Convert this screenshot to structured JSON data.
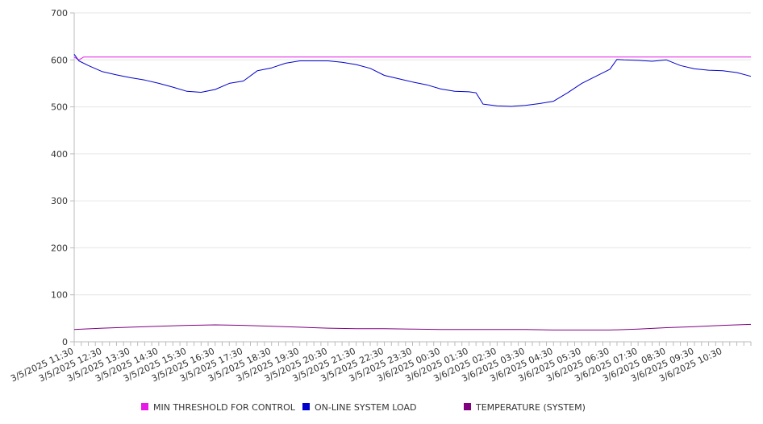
{
  "chart_data": {
    "type": "line",
    "title": "",
    "xlabel": "",
    "ylabel": "",
    "ylim": [
      0,
      700
    ],
    "yticks": [
      0,
      100,
      200,
      300,
      400,
      500,
      600,
      700
    ],
    "grid": "horizontal",
    "legend_position": "bottom",
    "x_tick_labels": [
      "3/5/2025 11:30",
      "3/5/2025 12:30",
      "3/5/2025 13:30",
      "3/5/2025 14:30",
      "3/5/2025 15:30",
      "3/5/2025 16:30",
      "3/5/2025 17:30",
      "3/5/2025 18:30",
      "3/5/2025 19:30",
      "3/5/2025 20:30",
      "3/5/2025 21:30",
      "3/5/2025 22:30",
      "3/5/2025 23:30",
      "3/6/2025 00:30",
      "3/6/2025 01:30",
      "3/6/2025 02:30",
      "3/6/2025 03:30",
      "3/6/2025 04:30",
      "3/6/2025 05:30",
      "3/6/2025 06:30",
      "3/6/2025 07:30",
      "3/6/2025 08:30",
      "3/6/2025 09:30",
      "3/6/2025 10:30"
    ],
    "x_start": "3/5/2025 11:30",
    "x_end": "3/6/2025 11:30",
    "series": [
      {
        "name": "MIN THRESHOLD FOR CONTROL",
        "color": "#e619e6",
        "points": [
          [
            "3/5/2025 11:30",
            606
          ],
          [
            "3/5/2025 11:40",
            600
          ],
          [
            "3/5/2025 11:50",
            606
          ],
          [
            "3/6/2025 11:30",
            606
          ]
        ]
      },
      {
        "name": "ON-LINE SYSTEM LOAD",
        "color": "#0000cc",
        "points": [
          [
            "3/5/2025 11:30",
            612
          ],
          [
            "3/5/2025 11:40",
            598
          ],
          [
            "3/5/2025 12:00",
            588
          ],
          [
            "3/5/2025 12:30",
            575
          ],
          [
            "3/5/2025 13:00",
            568
          ],
          [
            "3/5/2025 13:30",
            562
          ],
          [
            "3/5/2025 14:00",
            557
          ],
          [
            "3/5/2025 14:30",
            550
          ],
          [
            "3/5/2025 15:00",
            542
          ],
          [
            "3/5/2025 15:30",
            533
          ],
          [
            "3/5/2025 16:00",
            531
          ],
          [
            "3/5/2025 16:30",
            537
          ],
          [
            "3/5/2025 17:00",
            550
          ],
          [
            "3/5/2025 17:30",
            555
          ],
          [
            "3/5/2025 18:00",
            577
          ],
          [
            "3/5/2025 18:30",
            583
          ],
          [
            "3/5/2025 19:00",
            593
          ],
          [
            "3/5/2025 19:30",
            598
          ],
          [
            "3/5/2025 20:00",
            598
          ],
          [
            "3/5/2025 20:30",
            598
          ],
          [
            "3/5/2025 21:00",
            595
          ],
          [
            "3/5/2025 21:30",
            590
          ],
          [
            "3/5/2025 22:00",
            582
          ],
          [
            "3/5/2025 22:30",
            567
          ],
          [
            "3/5/2025 23:00",
            560
          ],
          [
            "3/5/2025 23:30",
            553
          ],
          [
            "3/6/2025 00:00",
            547
          ],
          [
            "3/6/2025 00:30",
            538
          ],
          [
            "3/6/2025 01:00",
            533
          ],
          [
            "3/6/2025 01:30",
            532
          ],
          [
            "3/6/2025 01:45",
            530
          ],
          [
            "3/6/2025 02:00",
            506
          ],
          [
            "3/6/2025 02:30",
            502
          ],
          [
            "3/6/2025 03:00",
            501
          ],
          [
            "3/6/2025 03:30",
            503
          ],
          [
            "3/6/2025 04:00",
            507
          ],
          [
            "3/6/2025 04:30",
            512
          ],
          [
            "3/6/2025 05:00",
            530
          ],
          [
            "3/6/2025 05:30",
            550
          ],
          [
            "3/6/2025 06:00",
            565
          ],
          [
            "3/6/2025 06:30",
            580
          ],
          [
            "3/6/2025 06:45",
            601
          ],
          [
            "3/6/2025 07:00",
            600
          ],
          [
            "3/6/2025 07:30",
            599
          ],
          [
            "3/6/2025 08:00",
            597
          ],
          [
            "3/6/2025 08:30",
            600
          ],
          [
            "3/6/2025 08:45",
            594
          ],
          [
            "3/6/2025 09:00",
            588
          ],
          [
            "3/6/2025 09:30",
            581
          ],
          [
            "3/6/2025 10:00",
            578
          ],
          [
            "3/6/2025 10:30",
            577
          ],
          [
            "3/6/2025 11:00",
            573
          ],
          [
            "3/6/2025 11:30",
            565
          ]
        ]
      },
      {
        "name": "TEMPERATURE (SYSTEM)",
        "color": "#800080",
        "points": [
          [
            "3/5/2025 11:30",
            26
          ],
          [
            "3/5/2025 12:30",
            29
          ],
          [
            "3/5/2025 13:30",
            31
          ],
          [
            "3/5/2025 14:30",
            33
          ],
          [
            "3/5/2025 15:30",
            35
          ],
          [
            "3/5/2025 16:30",
            36
          ],
          [
            "3/5/2025 17:30",
            35
          ],
          [
            "3/5/2025 18:30",
            33
          ],
          [
            "3/5/2025 19:30",
            31
          ],
          [
            "3/5/2025 20:30",
            29
          ],
          [
            "3/5/2025 21:30",
            28
          ],
          [
            "3/5/2025 22:30",
            28
          ],
          [
            "3/5/2025 23:30",
            27
          ],
          [
            "3/6/2025 00:30",
            26
          ],
          [
            "3/6/2025 01:30",
            26
          ],
          [
            "3/6/2025 02:30",
            26
          ],
          [
            "3/6/2025 03:30",
            26
          ],
          [
            "3/6/2025 04:30",
            25
          ],
          [
            "3/6/2025 05:30",
            25
          ],
          [
            "3/6/2025 06:30",
            25
          ],
          [
            "3/6/2025 07:30",
            27
          ],
          [
            "3/6/2025 08:30",
            30
          ],
          [
            "3/6/2025 09:30",
            32
          ],
          [
            "3/6/2025 10:30",
            35
          ],
          [
            "3/6/2025 11:30",
            37
          ]
        ]
      }
    ]
  }
}
